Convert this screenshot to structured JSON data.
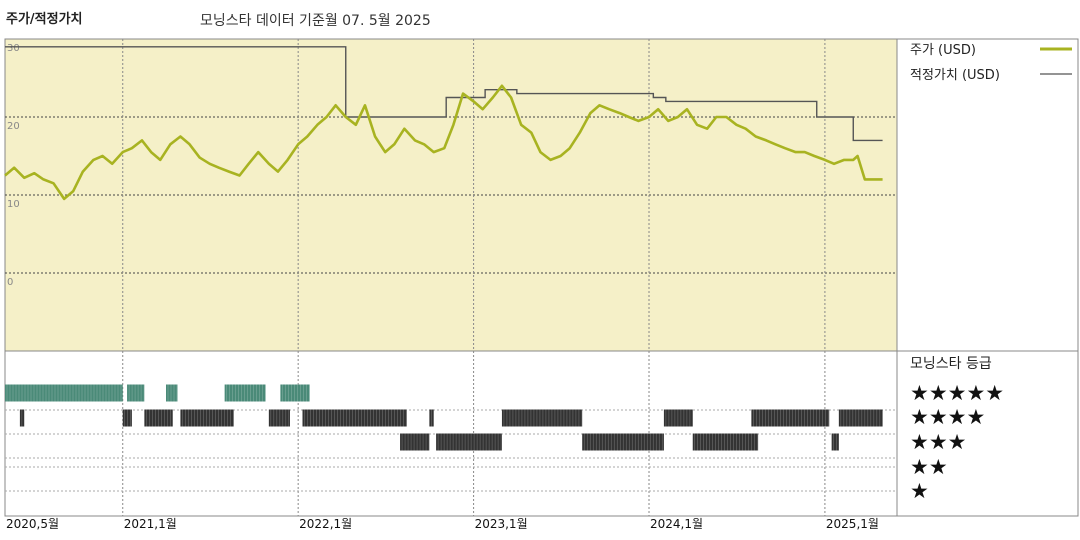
{
  "header": {
    "title": "주가/적정가치",
    "subtitle": "모닝스타 데이터 기준월 07. 5월 2025"
  },
  "legend": {
    "price_label": "주가 (USD)",
    "fair_label": "적정가치 (USD)",
    "rating_title": "모닝스타 등급",
    "star_rows": [
      "★★★★★",
      "★★★★",
      "★★★",
      "★★",
      "★"
    ]
  },
  "colors": {
    "price": "#a8b321",
    "fair": "#555555",
    "plot_bg": "#f5f0c8",
    "five_star": "#4a8a78",
    "four_star": "#333333",
    "three_star": "#333333"
  },
  "chart_data": {
    "type": "line",
    "xlabel": "",
    "ylabel": "",
    "xlim": [
      "2020-05-01",
      "2025-05-31"
    ],
    "ylim": [
      -10,
      30
    ],
    "y_ticks": [
      30,
      20,
      10,
      0
    ],
    "x_ticks": [
      "2020,5월",
      "2021,1월",
      "2022,1월",
      "2023,1월",
      "2024,1월",
      "2025,1월"
    ],
    "x_tick_dates": [
      "2020-05-01",
      "2021-01-01",
      "2022-01-01",
      "2023-01-01",
      "2024-01-01",
      "2025-01-01"
    ],
    "series": [
      {
        "name": "주가 (USD)",
        "x": [
          "2020-05-01",
          "2020-05-20",
          "2020-06-10",
          "2020-07-01",
          "2020-07-20",
          "2020-08-10",
          "2020-09-01",
          "2020-09-20",
          "2020-10-10",
          "2020-11-01",
          "2020-11-20",
          "2020-12-10",
          "2021-01-01",
          "2021-01-20",
          "2021-02-10",
          "2021-03-01",
          "2021-03-20",
          "2021-04-10",
          "2021-05-01",
          "2021-05-20",
          "2021-06-10",
          "2021-07-01",
          "2021-07-20",
          "2021-08-10",
          "2021-09-01",
          "2021-09-20",
          "2021-10-10",
          "2021-11-01",
          "2021-11-20",
          "2021-12-10",
          "2022-01-01",
          "2022-01-20",
          "2022-02-10",
          "2022-03-01",
          "2022-03-20",
          "2022-04-10",
          "2022-05-01",
          "2022-05-20",
          "2022-06-10",
          "2022-07-01",
          "2022-07-20",
          "2022-08-10",
          "2022-09-01",
          "2022-09-20",
          "2022-10-10",
          "2022-11-01",
          "2022-11-20",
          "2022-12-10",
          "2023-01-01",
          "2023-01-20",
          "2023-02-10",
          "2023-03-01",
          "2023-03-20",
          "2023-04-10",
          "2023-05-01",
          "2023-05-20",
          "2023-06-10",
          "2023-07-01",
          "2023-07-20",
          "2023-08-10",
          "2023-09-01",
          "2023-09-20",
          "2023-10-10",
          "2023-11-01",
          "2023-11-20",
          "2023-12-10",
          "2024-01-01",
          "2024-01-20",
          "2024-02-10",
          "2024-03-01",
          "2024-03-20",
          "2024-04-10",
          "2024-05-01",
          "2024-05-20",
          "2024-06-10",
          "2024-07-01",
          "2024-07-20",
          "2024-08-10",
          "2024-09-01",
          "2024-09-20",
          "2024-10-10",
          "2024-11-01",
          "2024-11-20",
          "2024-12-10",
          "2025-01-01",
          "2025-01-20",
          "2025-02-10",
          "2025-03-01",
          "2025-03-10",
          "2025-03-25",
          "2025-04-10",
          "2025-05-01"
        ],
        "values": [
          12.5,
          13.5,
          12.2,
          12.8,
          12.0,
          11.5,
          9.5,
          10.5,
          13.0,
          14.5,
          15.0,
          14.0,
          15.5,
          16.0,
          17.0,
          15.5,
          14.5,
          16.5,
          17.5,
          16.5,
          14.8,
          14.0,
          13.5,
          13.0,
          12.5,
          14.0,
          15.5,
          14.0,
          13.0,
          14.5,
          16.5,
          17.5,
          19.0,
          20.0,
          21.5,
          20.0,
          19.0,
          21.5,
          17.5,
          15.5,
          16.5,
          18.5,
          17.0,
          16.5,
          15.5,
          16.0,
          19.0,
          23.0,
          22.0,
          21.0,
          22.5,
          24.0,
          22.5,
          19.0,
          18.0,
          15.5,
          14.5,
          15.0,
          16.0,
          18.0,
          20.5,
          21.5,
          21.0,
          20.5,
          20.0,
          19.5,
          20.0,
          21.0,
          19.5,
          20.0,
          21.0,
          19.0,
          18.5,
          20.0,
          20.0,
          19.0,
          18.5,
          17.5,
          17.0,
          16.5,
          16.0,
          15.5,
          15.5,
          15.0,
          14.5,
          14.0,
          14.5,
          14.5,
          15.0,
          12.0,
          12.0,
          12.0
        ]
      },
      {
        "name": "적정가치 (USD)",
        "x": [
          "2020-05-01",
          "2022-04-10",
          "2022-04-10",
          "2022-11-05",
          "2022-11-05",
          "2023-01-25",
          "2023-01-25",
          "2023-04-01",
          "2023-04-01",
          "2024-01-10",
          "2024-01-10",
          "2024-02-05",
          "2024-02-05",
          "2024-12-15",
          "2024-12-15",
          "2025-03-01",
          "2025-03-01",
          "2025-05-01"
        ],
        "values": [
          29.0,
          29.0,
          20.0,
          20.0,
          22.5,
          22.5,
          23.5,
          23.5,
          23.0,
          23.0,
          22.5,
          22.5,
          22.0,
          22.0,
          20.0,
          20.0,
          17.0,
          17.0
        ]
      }
    ],
    "star_ratings": [
      {
        "rating": 5,
        "periods": [
          [
            "2020-05-01",
            "2021-01-01"
          ],
          [
            "2021-01-10",
            "2021-02-15"
          ],
          [
            "2021-04-01",
            "2021-04-25"
          ],
          [
            "2021-08-01",
            "2021-10-25"
          ],
          [
            "2021-11-25",
            "2022-01-25"
          ]
        ]
      },
      {
        "rating": 4,
        "periods": [
          [
            "2020-06-01",
            "2020-06-10"
          ],
          [
            "2021-01-01",
            "2021-01-20"
          ],
          [
            "2021-02-15",
            "2021-04-15"
          ],
          [
            "2021-05-01",
            "2021-08-20"
          ],
          [
            "2021-11-01",
            "2021-12-15"
          ],
          [
            "2022-01-10",
            "2022-08-15"
          ],
          [
            "2022-10-01",
            "2022-10-10"
          ],
          [
            "2023-03-01",
            "2023-08-15"
          ],
          [
            "2024-02-01",
            "2024-04-01"
          ],
          [
            "2024-08-01",
            "2025-01-10"
          ],
          [
            "2025-01-30",
            "2025-05-01"
          ]
        ]
      },
      {
        "rating": 3,
        "periods": [
          [
            "2022-08-01",
            "2022-10-01"
          ],
          [
            "2022-10-15",
            "2023-03-01"
          ],
          [
            "2023-08-15",
            "2024-02-01"
          ],
          [
            "2024-04-01",
            "2024-08-15"
          ],
          [
            "2025-01-15",
            "2025-01-30"
          ]
        ]
      }
    ]
  }
}
